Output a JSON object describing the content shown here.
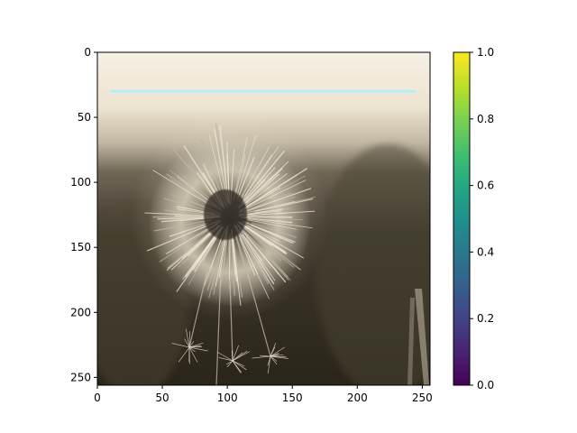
{
  "image": {
    "axes": {
      "x": {
        "min": 0,
        "max": 255,
        "ticks": [
          0,
          50,
          100,
          150,
          200,
          250
        ]
      },
      "y": {
        "min": 0,
        "max": 255,
        "inverted": true,
        "ticks": [
          0,
          50,
          100,
          150,
          200,
          250
        ]
      }
    },
    "overlay_line": {
      "y": 30,
      "x_start": 10,
      "x_end": 245,
      "color": "#aeeeff"
    }
  },
  "colorbar": {
    "colormap": "viridis",
    "min": 0.0,
    "max": 1.0,
    "ticks": [
      "0.0",
      "0.2",
      "0.4",
      "0.6",
      "0.8",
      "1.0"
    ]
  },
  "scene": {
    "subject_icon": "dandelion-seed-head-photo",
    "colors": {
      "sky_top": "#f6f1e6",
      "sky_bottom": "#c2b8a3",
      "ground": "#3a3426",
      "seedhead": "#d9d1c2"
    }
  }
}
